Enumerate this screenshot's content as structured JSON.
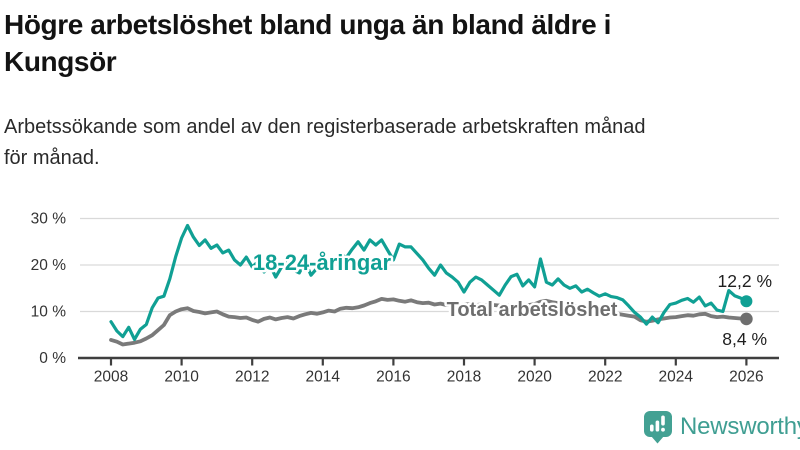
{
  "header": {
    "title_line1": "Högre arbetslöshet bland unga än bland äldre i",
    "title_line2": "Kungsör",
    "subtitle_line1": "Arbetssökande som andel av den registerbaserade arbetskraften månad",
    "subtitle_line2": "för månad."
  },
  "chart_data": {
    "type": "line",
    "title": "Högre arbetslöshet bland unga än bland äldre i Kungsör",
    "subtitle": "Arbetssökande som andel av den registerbaserade arbetskraften månad för månad.",
    "xlabel": "",
    "ylabel": "",
    "ylim": [
      0,
      30
    ],
    "x_range_years": [
      2008.0,
      2026.0
    ],
    "x_step_months": 2,
    "grid": "horizontal",
    "y_tick_labels": [
      "0 %",
      "10 %",
      "20 %",
      "30 %"
    ],
    "y_tick_values": [
      0,
      10,
      20,
      30
    ],
    "x_tick_labels": [
      "2008",
      "2010",
      "2012",
      "2014",
      "2016",
      "2018",
      "2020",
      "2022",
      "2024",
      "2026"
    ],
    "series": [
      {
        "name": "18-24-åringar",
        "color": "#10a094",
        "end_label": "12,2 %",
        "end_value": 12.2,
        "values": [
          7.8,
          5.8,
          4.6,
          6.6,
          4.0,
          6.2,
          7.2,
          10.8,
          12.9,
          13.3,
          17.0,
          21.8,
          25.8,
          28.5,
          26.0,
          24.2,
          25.4,
          23.6,
          24.3,
          22.6,
          23.2,
          21.1,
          20.0,
          21.7,
          19.6,
          20.7,
          18.5,
          20.0,
          17.4,
          19.6,
          21.5,
          18.9,
          18.3,
          20.7,
          17.8,
          19.3,
          20.4,
          19.2,
          21.0,
          22.4,
          21.6,
          23.4,
          25.0,
          23.2,
          25.4,
          24.3,
          25.4,
          23.2,
          21.1,
          24.5,
          23.9,
          23.9,
          22.5,
          21.1,
          19.3,
          17.8,
          20.0,
          18.3,
          17.4,
          16.3,
          14.2,
          16.3,
          17.4,
          16.8,
          15.7,
          14.6,
          13.5,
          15.7,
          17.5,
          18.0,
          15.5,
          16.8,
          15.3,
          21.3,
          16.3,
          15.7,
          17.0,
          15.7,
          15.0,
          15.5,
          14.2,
          14.8,
          14.0,
          13.3,
          13.8,
          13.2,
          13.0,
          12.5,
          11.2,
          9.8,
          8.8,
          7.3,
          8.8,
          7.6,
          9.8,
          11.5,
          11.8,
          12.4,
          12.8,
          12.0,
          13.1,
          11.2,
          11.8,
          10.3,
          10.0,
          14.5,
          13.4,
          12.9,
          12.2
        ]
      },
      {
        "name": "Total arbetslöshet",
        "color": "#7a7a7a",
        "end_label": "8,4 %",
        "end_value": 8.4,
        "values": [
          3.9,
          3.5,
          2.9,
          3.1,
          3.3,
          3.6,
          4.2,
          4.9,
          6.0,
          7.1,
          9.2,
          10.0,
          10.5,
          10.7,
          10.1,
          9.9,
          9.6,
          9.8,
          10.0,
          9.4,
          8.9,
          8.8,
          8.6,
          8.7,
          8.2,
          7.8,
          8.4,
          8.7,
          8.3,
          8.6,
          8.8,
          8.5,
          9.0,
          9.4,
          9.7,
          9.5,
          9.8,
          10.2,
          10.0,
          10.6,
          10.8,
          10.7,
          10.9,
          11.3,
          11.8,
          12.2,
          12.7,
          12.5,
          12.6,
          12.3,
          12.1,
          12.4,
          12.0,
          11.8,
          11.9,
          11.5,
          11.7,
          11.4,
          11.5,
          11.3,
          11.5,
          11.6,
          11.4,
          11.5,
          11.3,
          11.4,
          11.3,
          11.2,
          11.3,
          11.1,
          11.2,
          11.4,
          11.6,
          12.1,
          12.3,
          12.0,
          11.8,
          11.6,
          11.4,
          11.1,
          10.9,
          10.6,
          10.4,
          10.1,
          9.9,
          9.7,
          9.5,
          9.3,
          9.1,
          8.9,
          8.1,
          7.8,
          8.0,
          8.3,
          8.5,
          8.7,
          8.8,
          9.0,
          9.2,
          9.1,
          9.4,
          9.5,
          9.0,
          8.8,
          8.9,
          8.7,
          8.6,
          8.5,
          8.4
        ]
      }
    ],
    "legend_position": "inline-labels",
    "colors": {
      "accent_teal": "#10a094",
      "gray": "#7a7a7a",
      "axis": "#3f3f3f",
      "gridline": "#d9d9d9"
    }
  },
  "footer": {
    "brand": "Newsworthy",
    "brand_color": "#3f9e92",
    "logo_icon": "bar-chart-speech-bubble"
  }
}
